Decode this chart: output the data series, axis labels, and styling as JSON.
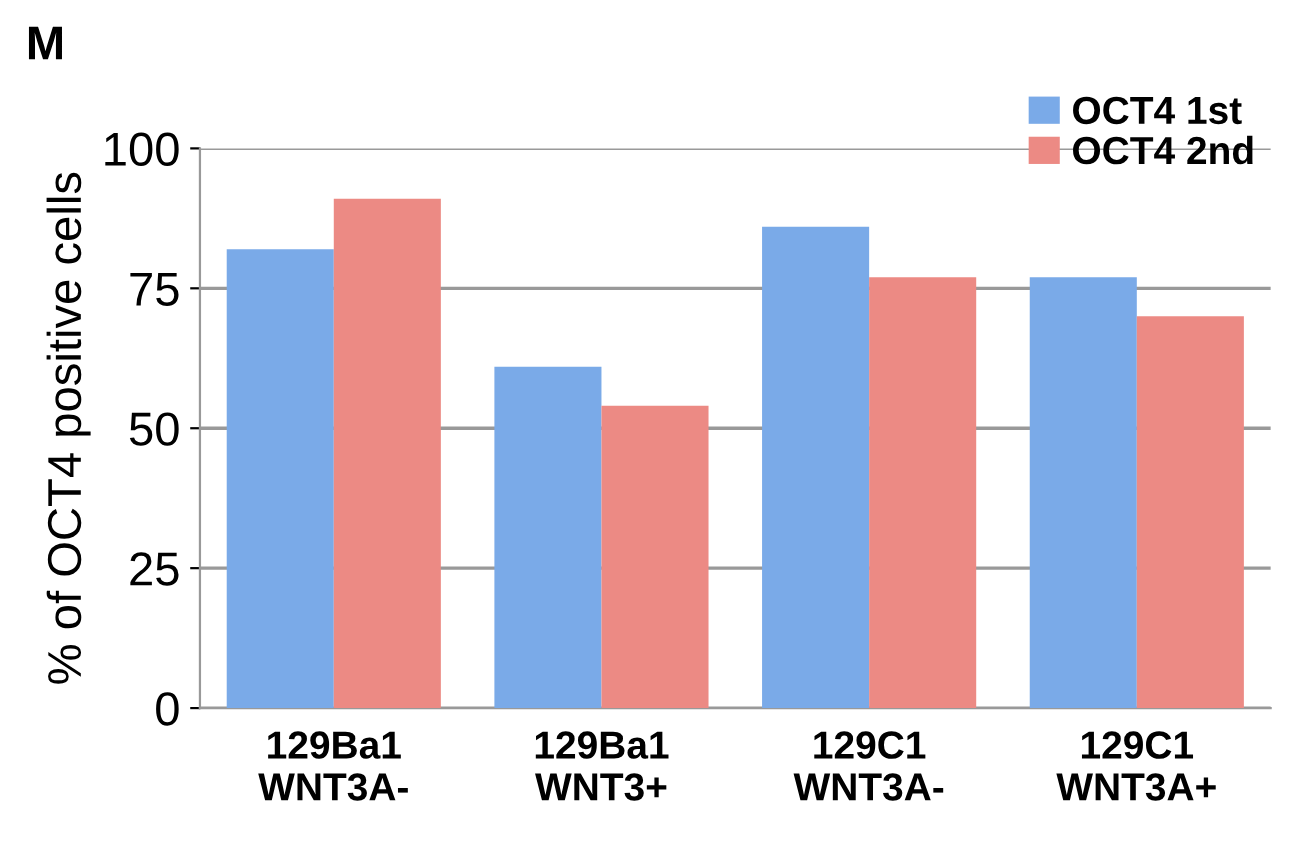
{
  "chart_data": {
    "type": "bar",
    "title": "M",
    "ylabel": "% of OCT4 positive cells",
    "categories": [
      "129Ba1\nWNT3A-",
      "129Ba1\nWNT3+",
      "129C1\nWNT3A-",
      "129C1\nWNT3A+"
    ],
    "series": [
      {
        "name": "OCT4 1st",
        "color": "#7aaae8",
        "values": [
          82,
          61,
          86,
          77
        ]
      },
      {
        "name": "OCT4 2nd",
        "color": "#ec8a84",
        "values": [
          91,
          54,
          77,
          70
        ]
      }
    ],
    "ylim": [
      0,
      100
    ],
    "yticks": [
      0,
      25,
      50,
      75,
      100
    ],
    "grid": "y",
    "legend": "top right"
  }
}
